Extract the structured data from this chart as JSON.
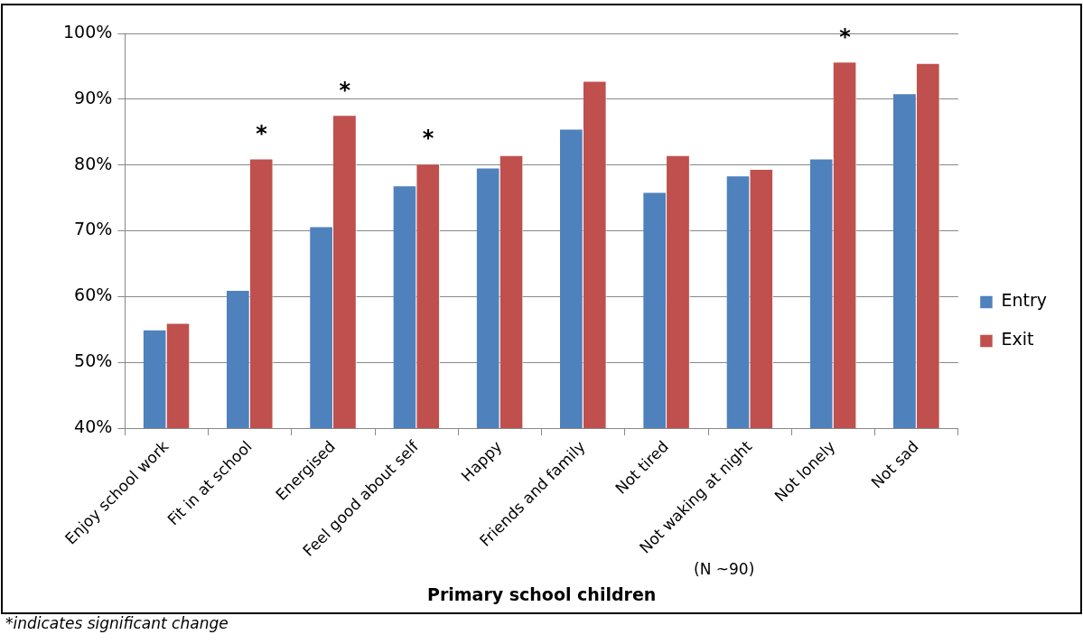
{
  "chart_data": {
    "type": "bar",
    "xlabel": "Primary school children",
    "categories": [
      "Enjoy school work",
      "Fit in at school",
      "Energised",
      "Feel good about self",
      "Happy",
      "Friends and family",
      "Not tired",
      "Not waking at night",
      "Not lonely",
      "Not sad"
    ],
    "series": [
      {
        "name": "Entry",
        "color": "#4f81bd",
        "values": [
          55.0,
          61.0,
          70.7,
          76.9,
          79.6,
          85.5,
          75.9,
          78.4,
          81.0,
          90.9
        ]
      },
      {
        "name": "Exit",
        "color": "#c0504d",
        "values": [
          56.0,
          81.0,
          87.6,
          80.2,
          81.5,
          92.8,
          81.5,
          79.4,
          95.7,
          95.5
        ]
      }
    ],
    "ylim": [
      40,
      100
    ],
    "yticks": [
      {
        "value": 40,
        "label": "40%"
      },
      {
        "value": 50,
        "label": "50%"
      },
      {
        "value": 60,
        "label": "60%"
      },
      {
        "value": 70,
        "label": "70%"
      },
      {
        "value": 80,
        "label": "80%"
      },
      {
        "value": 90,
        "label": "90%"
      },
      {
        "value": 100,
        "label": "100%"
      }
    ],
    "grid": "y",
    "legend": "right",
    "annotations": [
      {
        "text": "*",
        "x": "Fit in at school",
        "y": 81.0
      },
      {
        "text": "*",
        "x": "Energised",
        "y": 87.6
      },
      {
        "text": "*",
        "x": "Feel good about self",
        "y": 80.2
      },
      {
        "text": "*",
        "x": "Not lonely",
        "y": 95.7
      },
      "(N ~90)",
      "*indicates significant change"
    ]
  }
}
